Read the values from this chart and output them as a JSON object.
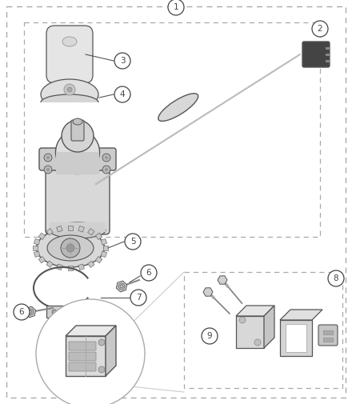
{
  "bg_color": "#ffffff",
  "dc": "#aaaaaa",
  "lc": "#444444",
  "pe": "#555555",
  "fc_light": "#e8e8e8",
  "fc_mid": "#d0d0d0",
  "fc_dark": "#b0b0b0",
  "fc_black": "#333333",
  "figsize": [
    4.4,
    5.05
  ],
  "dpi": 100
}
